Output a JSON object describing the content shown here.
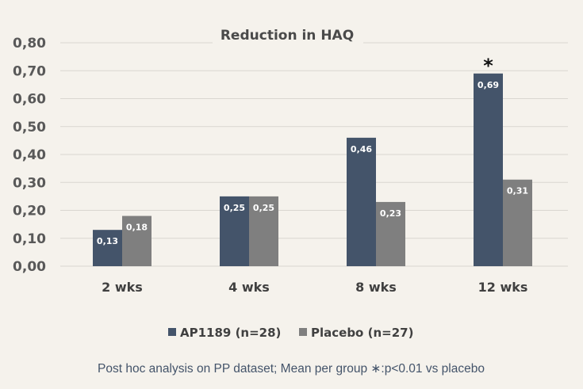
{
  "chart_data": {
    "type": "bar",
    "title": "Reduction in HAQ",
    "categories": [
      "2 wks",
      "4 wks",
      "8 wks",
      "12 wks"
    ],
    "series": [
      {
        "name": "AP1189 (n=28)",
        "values": [
          0.13,
          0.25,
          0.46,
          0.69
        ],
        "labels": [
          "0,13",
          "0,25",
          "0,46",
          "0,69"
        ],
        "color": "#44546a"
      },
      {
        "name": "Placebo (n=27)",
        "values": [
          0.18,
          0.25,
          0.23,
          0.31
        ],
        "labels": [
          "0,18",
          "0,25",
          "0,23",
          "0,31"
        ],
        "color": "#7f7f7f"
      }
    ],
    "ylim": [
      0,
      0.8
    ],
    "yticks": [
      "0,00",
      "0,10",
      "0,20",
      "0,30",
      "0,40",
      "0,50",
      "0,60",
      "0,70",
      "0,80"
    ],
    "grid": true,
    "legend_position": "bottom",
    "annotations": [
      {
        "category": "12 wks",
        "text": "*"
      }
    ],
    "xlabel": "",
    "ylabel": ""
  },
  "footnote": "Post hoc analysis on PP dataset; Mean per group ∗:p<0.01 vs placebo"
}
